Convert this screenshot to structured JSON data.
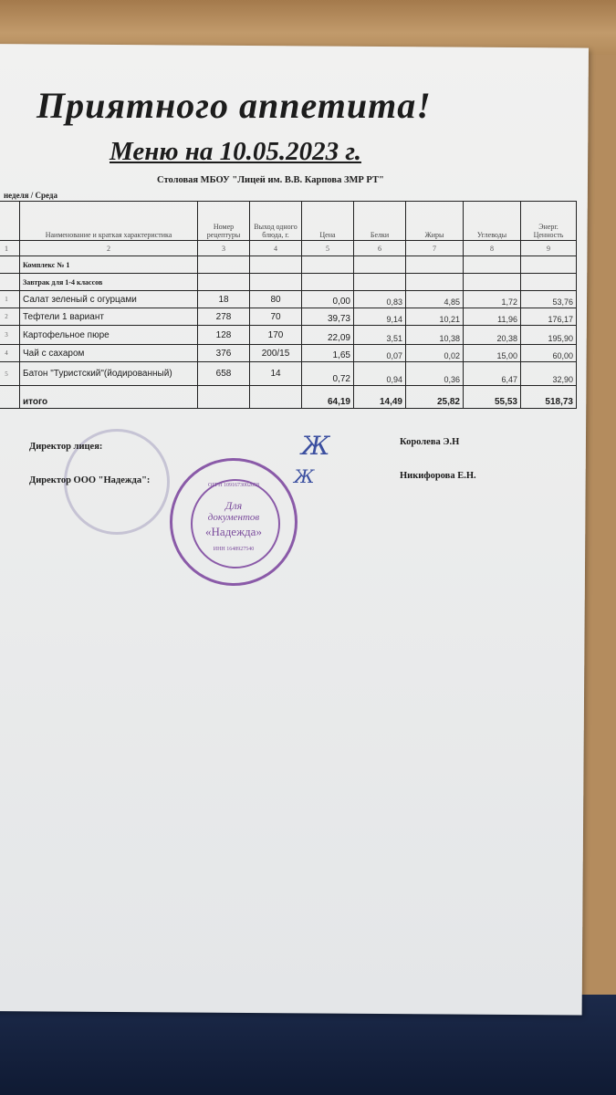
{
  "title": "Приятного аппетита!",
  "subtitle": "Меню на  10.05.2023 г.",
  "organization": "Столовая МБОУ \"Лицей им. В.В. Карпова ЗМР РТ\"",
  "week_day": "неделя / Среда",
  "table": {
    "headers": [
      "",
      "Наименование и краткая характеристика",
      "Номер рецептуры",
      "Выход одного блюда, г.",
      "Цена",
      "Белки",
      "Жиры",
      "Углеводы",
      "Энерг. Ценность"
    ],
    "column_numbers": [
      "1",
      "2",
      "3",
      "4",
      "5",
      "6",
      "7",
      "8",
      "9"
    ],
    "sections": [
      "Комплекс № 1",
      "Завтрак для 1-4 классов"
    ],
    "rows": [
      [
        "1",
        "Салат зеленый с огурцами",
        "18",
        "80",
        "0,00",
        "0,83",
        "4,85",
        "1,72",
        "53,76"
      ],
      [
        "2",
        "Тефтели  1 вариант",
        "278",
        "70",
        "39,73",
        "9,14",
        "10,21",
        "11,96",
        "176,17"
      ],
      [
        "3",
        "Картофельное пюре",
        "128",
        "170",
        "22,09",
        "3,51",
        "10,38",
        "20,38",
        "195,90"
      ],
      [
        "4",
        "Чай с сахаром",
        "376",
        "200/15",
        "1,65",
        "0,07",
        "0,02",
        "15,00",
        "60,00"
      ],
      [
        "5",
        "Батон \"Туристский\"(йодированный)",
        "658",
        "14",
        "0,72",
        "0,94",
        "0,36",
        "6,47",
        "32,90"
      ]
    ],
    "total": [
      "",
      "итого",
      "",
      "",
      "64,19",
      "14,49",
      "25,82",
      "55,53",
      "518,73"
    ]
  },
  "signatures": [
    {
      "role": "Директор лицея:",
      "name": "Королева Э.Н"
    },
    {
      "role": "Директор ООО \"Надежда\":",
      "name": "Никифорова Е.Н."
    }
  ],
  "stamp": {
    "center_line1": "Для",
    "center_line2": "документов",
    "center_line3": "«Надежда»",
    "ogrn": "ОГРН 1091673002058",
    "inn": "ИНН 1648927540",
    "color": "#7b4c9c"
  }
}
